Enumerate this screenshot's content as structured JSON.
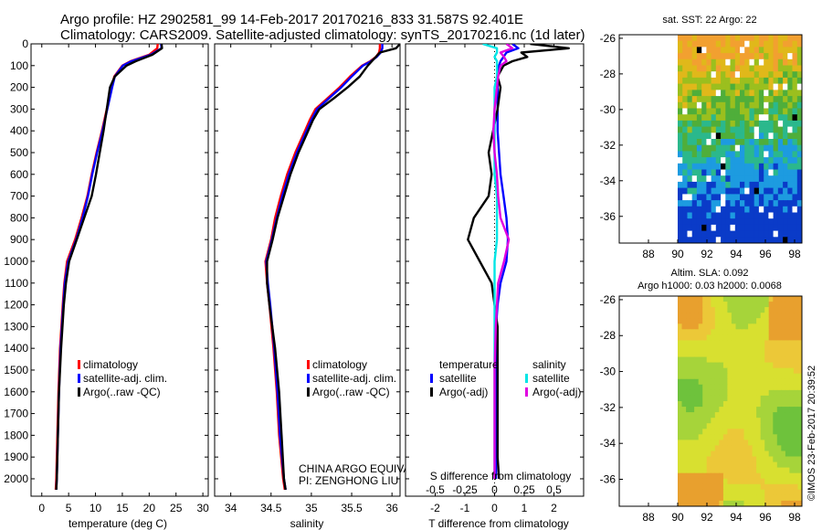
{
  "header": {
    "line1": "Argo profile: HZ 2902581_99 14-Feb-2017 20170216_833 31.587S 92.401E",
    "line2": "Climatology: CARS2009. Satellite-adjusted climatology: synTS_20170216.nc (1d later)"
  },
  "colors": {
    "climatology": "#ff0000",
    "satellite_adj_clim": "#0000ff",
    "argo": "#000000",
    "temp_satellite": "#0000ff",
    "sal_satellite": "#00e5e5",
    "sal_argo": "#e000e0"
  },
  "chart_data": [
    {
      "id": "temperature",
      "type": "line",
      "xlabel": "temperature (deg C)",
      "ylabel": "",
      "xlim": [
        -2,
        31
      ],
      "ylim": [
        2080,
        0
      ],
      "xticks": [
        0,
        5,
        10,
        15,
        20,
        25,
        30
      ],
      "yticks": [
        0,
        100,
        200,
        300,
        400,
        500,
        600,
        700,
        800,
        900,
        1000,
        1100,
        1200,
        1300,
        1400,
        1500,
        1600,
        1700,
        1800,
        1900,
        2000
      ],
      "depth": [
        0,
        20,
        50,
        80,
        100,
        150,
        200,
        300,
        400,
        500,
        600,
        700,
        800,
        900,
        1000,
        1100,
        1200,
        1400,
        1600,
        1800,
        2000,
        2050
      ],
      "series": [
        {
          "name": "climatology",
          "color_key": "climatology",
          "values": [
            21.6,
            21.5,
            20,
            16.5,
            15,
            13.5,
            13,
            12.1,
            11.2,
            10.2,
            9.3,
            8.5,
            7.4,
            6.2,
            4.7,
            4.2,
            3.9,
            3.4,
            3.1,
            2.9,
            2.7,
            2.6
          ]
        },
        {
          "name": "satellite-adj. clim.",
          "color_key": "satellite_adj_clim",
          "values": [
            22.2,
            22.3,
            20.3,
            16.7,
            15.1,
            13.6,
            13.1,
            12.2,
            11.3,
            10.3,
            9.4,
            8.6,
            7.6,
            6.4,
            4.9,
            4.3,
            4.0,
            3.5,
            3.2,
            3.0,
            2.8,
            2.7
          ]
        },
        {
          "name": "Argo(..raw -QC)",
          "color_key": "argo",
          "values": [
            22.3,
            22.4,
            20.6,
            17.5,
            15.8,
            13.6,
            12.7,
            12.1,
            11.5,
            10.8,
            10.1,
            9.3,
            7.9,
            6.5,
            5.1,
            4.5,
            4.1,
            3.6,
            3.2,
            3.0,
            2.8,
            2.7
          ]
        }
      ],
      "legend": [
        "climatology",
        "satellite-adj. clim.",
        "Argo(..raw -QC)"
      ]
    },
    {
      "id": "salinity",
      "type": "line",
      "xlabel": "salinity",
      "xlim": [
        33.8,
        36.1
      ],
      "ylim": [
        2080,
        0
      ],
      "xticks": [
        34,
        34.5,
        35,
        35.5,
        36
      ],
      "depth": [
        0,
        20,
        40,
        60,
        80,
        100,
        150,
        200,
        250,
        300,
        350,
        400,
        500,
        600,
        700,
        800,
        900,
        1000,
        1100,
        1200,
        1400,
        1600,
        1800,
        2000,
        2050
      ],
      "series": [
        {
          "name": "climatology",
          "color_key": "climatology",
          "values": [
            35.85,
            35.85,
            35.84,
            35.8,
            35.73,
            35.63,
            35.48,
            35.35,
            35.2,
            35.05,
            34.98,
            34.92,
            34.8,
            34.7,
            34.62,
            34.55,
            34.5,
            34.43,
            34.45,
            34.48,
            34.53,
            34.57,
            34.6,
            34.65,
            34.67
          ]
        },
        {
          "name": "satellite-adj. clim.",
          "color_key": "satellite_adj_clim",
          "values": [
            35.88,
            35.88,
            35.86,
            35.81,
            35.74,
            35.64,
            35.5,
            35.37,
            35.22,
            35.07,
            35.0,
            34.94,
            34.82,
            34.72,
            34.64,
            34.57,
            34.51,
            34.44,
            34.46,
            34.49,
            34.54,
            34.58,
            34.61,
            34.66,
            34.68
          ]
        },
        {
          "name": "Argo(..raw -QC)",
          "color_key": "argo",
          "values": [
            36.1,
            36.05,
            35.85,
            35.8,
            35.75,
            35.7,
            35.6,
            35.45,
            35.28,
            35.1,
            35.02,
            34.96,
            34.84,
            34.74,
            34.66,
            34.58,
            34.52,
            34.45,
            34.45,
            34.48,
            34.55,
            34.6,
            34.63,
            34.66,
            34.68
          ]
        }
      ],
      "legend": [
        "climatology",
        "satellite-adj. clim.",
        "Argo(..raw -QC)"
      ],
      "annotations": [
        "CHINA ARGO EQUIVALENT",
        "PI: ZENGHONG LIU"
      ]
    },
    {
      "id": "differences",
      "type": "line",
      "xlabel": "T difference from climatology",
      "xlabel_top": "S difference from climatology",
      "xlim": [
        -3,
        3
      ],
      "s_xlim": [
        -0.75,
        0.75
      ],
      "ylim": [
        2080,
        0
      ],
      "xticks": [
        -2,
        -1,
        0,
        1,
        2
      ],
      "s_xticks": [
        -0.5,
        -0.25,
        0,
        0.25,
        0.5
      ],
      "s_xtick_labels": [
        "-0.5",
        "-0.25",
        "0",
        "0.25",
        "0.5"
      ],
      "depth": [
        0,
        20,
        40,
        60,
        80,
        100,
        150,
        200,
        300,
        400,
        500,
        600,
        700,
        800,
        900,
        1000,
        1100,
        1200,
        1300,
        1500,
        1700,
        1900,
        2000
      ],
      "series": [
        {
          "name": "temperature satellite",
          "group": "temperature",
          "color_key": "temp_satellite",
          "axis": "T",
          "values": [
            0.6,
            0.8,
            0.4,
            0.3,
            0.2,
            0.15,
            0.1,
            0.1,
            0.1,
            0.1,
            0.15,
            0.2,
            0.3,
            0.4,
            0.45,
            0.4,
            0.2,
            0.1,
            0.05,
            0.05,
            0.05,
            0.05,
            0.05
          ]
        },
        {
          "name": "temperature Argo(-adj)",
          "group": "temperature",
          "color_key": "argo",
          "axis": "T",
          "values": [
            1.2,
            2.5,
            0.9,
            1.1,
            0.6,
            0.3,
            0.1,
            0.2,
            0.1,
            -0.05,
            -0.2,
            -0.1,
            -0.2,
            -0.7,
            -0.9,
            -0.5,
            -0.1,
            0.0,
            0.1,
            0.1,
            0.1,
            0.1,
            0.15
          ]
        },
        {
          "name": "salinity satellite",
          "group": "salinity",
          "color_key": "sal_satellite",
          "axis": "S",
          "values": [
            -0.1,
            0.02,
            0.02,
            0.0,
            0.02,
            0.02,
            0.02,
            0.0,
            0.0,
            0.0,
            0.0,
            0.0,
            0.02,
            0.02,
            0.02,
            0.0,
            0.0,
            0.0,
            0.0,
            0.0,
            0.0,
            0.0,
            0.0
          ]
        },
        {
          "name": "salinity Argo(-adj)",
          "group": "salinity",
          "color_key": "sal_argo",
          "axis": "S",
          "values": [
            0.1,
            0.15,
            0.05,
            0.08,
            0.1,
            0.05,
            0.03,
            0.02,
            0.0,
            -0.01,
            0.0,
            0.02,
            0.03,
            0.05,
            0.12,
            0.08,
            0.03,
            0.02,
            0.01,
            0.0,
            0.0,
            0.0,
            0.0
          ]
        }
      ],
      "legend_titles": {
        "temperature": "temperature",
        "salinity": "salinity"
      },
      "legend_labels": {
        "satellite": "satellite",
        "argo": "Argo(-adj)"
      }
    },
    {
      "id": "sst_map",
      "type": "heatmap",
      "title": "sat. SST: 22 Argo: 22",
      "xlim": [
        86,
        98.5
      ],
      "ylim": [
        -37.5,
        -25.8
      ],
      "xticks": [
        88,
        90,
        92,
        94,
        96,
        98
      ],
      "yticks": [
        -26,
        -28,
        -30,
        -32,
        -34,
        -36
      ],
      "data_lon_start": 90
    },
    {
      "id": "sla_map",
      "type": "heatmap",
      "title_line1": "Altim. SLA: 0.092",
      "title_line2": "Argo h1000: 0.03 h2000: 0.0068",
      "xlim": [
        86,
        98.5
      ],
      "ylim": [
        -37.5,
        -25.8
      ],
      "xticks": [
        88,
        90,
        92,
        94,
        96,
        98
      ],
      "yticks": [
        -26,
        -28,
        -30,
        -32,
        -34,
        -36
      ],
      "data_lon_start": 90
    }
  ],
  "footer": {
    "credit": "©IMOS 23-Feb-2017 20:39:52"
  }
}
